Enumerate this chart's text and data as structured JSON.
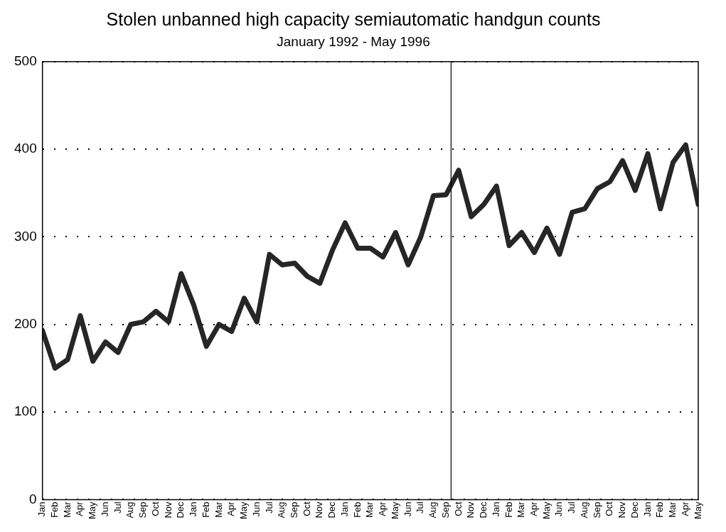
{
  "chart_data": {
    "type": "line",
    "title": "Stolen unbanned high capacity semiautomatic handgun counts",
    "subtitle": "January 1992 - May 1996",
    "x": [
      "1992-01",
      "1992-02",
      "1992-03",
      "1992-04",
      "1992-05",
      "1992-06",
      "1992-07",
      "1992-08",
      "1992-09",
      "1992-10",
      "1992-11",
      "1992-12",
      "1993-01",
      "1993-02",
      "1993-03",
      "1993-04",
      "1993-05",
      "1993-06",
      "1993-07",
      "1993-08",
      "1993-09",
      "1993-10",
      "1993-11",
      "1993-12",
      "1994-01",
      "1994-02",
      "1994-03",
      "1994-04",
      "1994-05",
      "1994-06",
      "1994-07",
      "1994-08",
      "1994-09",
      "1994-10",
      "1994-11",
      "1994-12",
      "1995-01",
      "1995-02",
      "1995-03",
      "1995-04",
      "1995-05",
      "1995-06",
      "1995-07",
      "1995-08",
      "1995-09",
      "1995-10",
      "1995-11",
      "1995-12",
      "1996-01",
      "1996-02",
      "1996-03",
      "1996-04",
      "1996-05"
    ],
    "series": [
      {
        "color": "#262626",
        "values": [
          193,
          150,
          160,
          210,
          158,
          180,
          168,
          200,
          203,
          215,
          203,
          258,
          222,
          175,
          200,
          192,
          230,
          203,
          280,
          268,
          270,
          255,
          247,
          285,
          316,
          287,
          287,
          277,
          305,
          268,
          300,
          347,
          348,
          376,
          323,
          337,
          358,
          290,
          305,
          282,
          310,
          280,
          328,
          332,
          355,
          363,
          387,
          353,
          395,
          332,
          385,
          405,
          337
        ]
      }
    ],
    "xlim": [
      "1992-01",
      "1996-05"
    ],
    "xticks": [
      {
        "value": "1992-01",
        "label": "Jan"
      },
      {
        "value": "1992-02",
        "label": "Feb"
      },
      {
        "value": "1992-03",
        "label": "Mar"
      },
      {
        "value": "1992-04",
        "label": "Apr"
      },
      {
        "value": "1992-05",
        "label": "May"
      },
      {
        "value": "1992-06",
        "label": "Jun"
      },
      {
        "value": "1992-07",
        "label": "Jul"
      },
      {
        "value": "1992-08",
        "label": "Aug"
      },
      {
        "value": "1992-09",
        "label": "Sep"
      },
      {
        "value": "1992-10",
        "label": "Oct"
      },
      {
        "value": "1992-11",
        "label": "Nov"
      },
      {
        "value": "1992-12",
        "label": "Dec"
      },
      {
        "value": "1993-01",
        "label": "Jan"
      },
      {
        "value": "1993-02",
        "label": "Feb"
      },
      {
        "value": "1993-03",
        "label": "Mar"
      },
      {
        "value": "1993-04",
        "label": "Apr"
      },
      {
        "value": "1993-05",
        "label": "May"
      },
      {
        "value": "1993-06",
        "label": "Jun"
      },
      {
        "value": "1993-07",
        "label": "Jul"
      },
      {
        "value": "1993-08",
        "label": "Aug"
      },
      {
        "value": "1993-09",
        "label": "Sep"
      },
      {
        "value": "1993-10",
        "label": "Oct"
      },
      {
        "value": "1993-11",
        "label": "Nov"
      },
      {
        "value": "1993-12",
        "label": "Dec"
      },
      {
        "value": "1994-01",
        "label": "Jan"
      },
      {
        "value": "1994-02",
        "label": "Feb"
      },
      {
        "value": "1994-03",
        "label": "Mar"
      },
      {
        "value": "1994-04",
        "label": "Apr"
      },
      {
        "value": "1994-05",
        "label": "May"
      },
      {
        "value": "1994-06",
        "label": "Jun"
      },
      {
        "value": "1994-07",
        "label": "Jul"
      },
      {
        "value": "1994-08",
        "label": "Aug"
      },
      {
        "value": "1994-09",
        "label": "Sep"
      },
      {
        "value": "1994-10",
        "label": "Oct"
      },
      {
        "value": "1994-11",
        "label": "Nov"
      },
      {
        "value": "1994-12",
        "label": "Dec"
      },
      {
        "value": "1995-01",
        "label": "Jan"
      },
      {
        "value": "1995-02",
        "label": "Feb"
      },
      {
        "value": "1995-03",
        "label": "Mar"
      },
      {
        "value": "1995-04",
        "label": "Apr"
      },
      {
        "value": "1995-05",
        "label": "May"
      },
      {
        "value": "1995-06",
        "label": "Jun"
      },
      {
        "value": "1995-07",
        "label": "Jul"
      },
      {
        "value": "1995-08",
        "label": "Aug"
      },
      {
        "value": "1995-09",
        "label": "Sep"
      },
      {
        "value": "1995-10",
        "label": "Oct"
      },
      {
        "value": "1995-11",
        "label": "Nov"
      },
      {
        "value": "1995-12",
        "label": "Dec"
      },
      {
        "value": "1996-01",
        "label": "Jan"
      },
      {
        "value": "1996-02",
        "label": "Feb"
      },
      {
        "value": "1996-03",
        "label": "Mar"
      },
      {
        "value": "1996-04",
        "label": "Apr"
      },
      {
        "value": "1996-05",
        "label": "May"
      }
    ],
    "ylim": [
      0,
      500
    ],
    "yticks": [
      0,
      100,
      200,
      300,
      400,
      500
    ],
    "grid": "y",
    "legend": false,
    "marker": "none",
    "line_style": "solid",
    "ref_lines": [
      {
        "axis": "x",
        "value": "1994-09-13",
        "color": "#000000"
      }
    ]
  }
}
